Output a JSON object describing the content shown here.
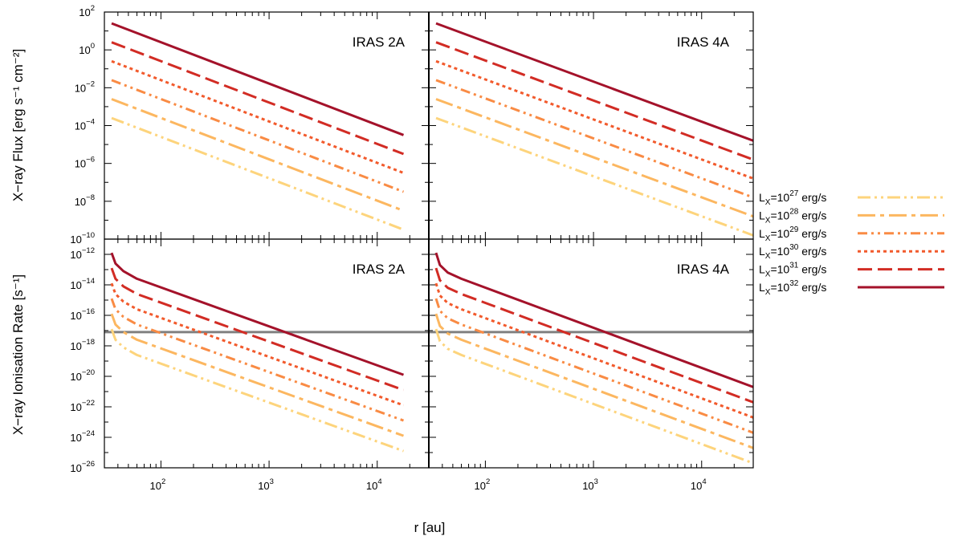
{
  "colors": {
    "lx27": "#fdd47c",
    "lx28": "#fcb760",
    "lx29": "#f98b44",
    "lx30": "#f25a2c",
    "lx31": "#d22c24",
    "lx32": "#a4122a",
    "threshold": "#808080"
  },
  "chart_data": [
    {
      "type": "line",
      "panel": "top-left",
      "title": "IRAS 2A",
      "ylabel": "X−ray Flux [erg s⁻¹ cm⁻²]",
      "xlabel": "r [au]",
      "xscale": "log",
      "yscale": "log",
      "xlim": [
        30,
        30000
      ],
      "ylim_exponents": [
        -10,
        2
      ],
      "yticks": [
        "10^2",
        "10^0",
        "10^-2",
        "10^-4",
        "10^-6",
        "10^-8",
        "10^-10"
      ],
      "series": [
        {
          "name": "LX=10^27 erg/s",
          "color_key": "lx27",
          "x": [
            35,
            17500
          ],
          "y_exp": [
            -3.6,
            -9.5
          ]
        },
        {
          "name": "LX=10^28 erg/s",
          "color_key": "lx28",
          "x": [
            35,
            17500
          ],
          "y_exp": [
            -2.6,
            -8.5
          ]
        },
        {
          "name": "LX=10^29 erg/s",
          "color_key": "lx29",
          "x": [
            35,
            17500
          ],
          "y_exp": [
            -1.6,
            -7.5
          ]
        },
        {
          "name": "LX=10^30 erg/s",
          "color_key": "lx30",
          "x": [
            35,
            17500
          ],
          "y_exp": [
            -0.6,
            -6.5
          ]
        },
        {
          "name": "LX=10^31 erg/s",
          "color_key": "lx31",
          "x": [
            35,
            17500
          ],
          "y_exp": [
            0.4,
            -5.5
          ]
        },
        {
          "name": "LX=10^32 erg/s",
          "color_key": "lx32",
          "x": [
            35,
            17500
          ],
          "y_exp": [
            1.4,
            -4.5
          ]
        }
      ]
    },
    {
      "type": "line",
      "panel": "top-right",
      "title": "IRAS 4A",
      "xscale": "log",
      "yscale": "log",
      "xlim": [
        30,
        30000
      ],
      "ylim_exponents": [
        -10,
        2
      ],
      "series": [
        {
          "name": "LX=10^27 erg/s",
          "color_key": "lx27",
          "x": [
            35,
            30000
          ],
          "y_exp": [
            -3.6,
            -9.8
          ]
        },
        {
          "name": "LX=10^28 erg/s",
          "color_key": "lx28",
          "x": [
            35,
            30000
          ],
          "y_exp": [
            -2.6,
            -8.8
          ]
        },
        {
          "name": "LX=10^29 erg/s",
          "color_key": "lx29",
          "x": [
            35,
            30000
          ],
          "y_exp": [
            -1.6,
            -7.8
          ]
        },
        {
          "name": "LX=10^30 erg/s",
          "color_key": "lx30",
          "x": [
            35,
            30000
          ],
          "y_exp": [
            -0.6,
            -6.8
          ]
        },
        {
          "name": "LX=10^31 erg/s",
          "color_key": "lx31",
          "x": [
            35,
            30000
          ],
          "y_exp": [
            0.4,
            -5.8
          ]
        },
        {
          "name": "LX=10^32 erg/s",
          "color_key": "lx32",
          "x": [
            35,
            30000
          ],
          "y_exp": [
            1.4,
            -4.8
          ]
        }
      ]
    },
    {
      "type": "line",
      "panel": "bottom-left",
      "title": "IRAS 2A",
      "ylabel": "X−ray Ionisation Rate [s⁻¹]",
      "xscale": "log",
      "yscale": "log",
      "xlim": [
        30,
        30000
      ],
      "ylim_exponents": [
        -26,
        -11
      ],
      "xticks": [
        "10^2",
        "10^3",
        "10^4"
      ],
      "yticks": [
        "10^-10",
        "10^-12",
        "10^-14",
        "10^-16",
        "10^-18",
        "10^-20",
        "10^-22",
        "10^-24",
        "10^-26"
      ],
      "threshold_y_exp": -17.1,
      "series": [
        {
          "name": "LX=10^27 erg/s",
          "color_key": "lx27",
          "x": [
            35,
            38,
            45,
            60,
            17500
          ],
          "y_exp": [
            -16.9,
            -17.6,
            -18.1,
            -18.6,
            -24.9
          ]
        },
        {
          "name": "LX=10^28 erg/s",
          "color_key": "lx28",
          "x": [
            35,
            38,
            45,
            60,
            17500
          ],
          "y_exp": [
            -15.9,
            -16.6,
            -17.1,
            -17.6,
            -23.9
          ]
        },
        {
          "name": "LX=10^29 erg/s",
          "color_key": "lx29",
          "x": [
            35,
            38,
            45,
            60,
            17500
          ],
          "y_exp": [
            -14.9,
            -15.6,
            -16.1,
            -16.6,
            -22.9
          ]
        },
        {
          "name": "LX=10^30 erg/s",
          "color_key": "lx30",
          "x": [
            35,
            38,
            45,
            60,
            17500
          ],
          "y_exp": [
            -13.9,
            -14.6,
            -15.1,
            -15.6,
            -21.9
          ]
        },
        {
          "name": "LX=10^31 erg/s",
          "color_key": "lx31",
          "x": [
            35,
            38,
            45,
            60,
            17500
          ],
          "y_exp": [
            -12.9,
            -13.6,
            -14.1,
            -14.6,
            -20.9
          ]
        },
        {
          "name": "LX=10^32 erg/s",
          "color_key": "lx32",
          "x": [
            35,
            38,
            45,
            60,
            17500
          ],
          "y_exp": [
            -11.9,
            -12.6,
            -13.1,
            -13.6,
            -19.9
          ]
        }
      ]
    },
    {
      "type": "line",
      "panel": "bottom-right",
      "title": "IRAS 4A",
      "xscale": "log",
      "yscale": "log",
      "xlim": [
        30,
        30000
      ],
      "ylim_exponents": [
        -26,
        -11
      ],
      "xticks": [
        "10^2",
        "10^3",
        "10^4"
      ],
      "threshold_y_exp": -17.1,
      "series": [
        {
          "name": "LX=10^27 erg/s",
          "color_key": "lx27",
          "x": [
            35,
            38,
            45,
            60,
            30000
          ],
          "y_exp": [
            -16.9,
            -17.7,
            -18.2,
            -18.6,
            -25.7
          ]
        },
        {
          "name": "LX=10^28 erg/s",
          "color_key": "lx28",
          "x": [
            35,
            38,
            45,
            60,
            30000
          ],
          "y_exp": [
            -15.9,
            -16.7,
            -17.2,
            -17.6,
            -24.7
          ]
        },
        {
          "name": "LX=10^29 erg/s",
          "color_key": "lx29",
          "x": [
            35,
            38,
            45,
            60,
            30000
          ],
          "y_exp": [
            -14.9,
            -15.7,
            -16.2,
            -16.6,
            -23.7
          ]
        },
        {
          "name": "LX=10^30 erg/s",
          "color_key": "lx30",
          "x": [
            35,
            38,
            45,
            60,
            30000
          ],
          "y_exp": [
            -13.9,
            -14.7,
            -15.2,
            -15.6,
            -22.7
          ]
        },
        {
          "name": "LX=10^31 erg/s",
          "color_key": "lx31",
          "x": [
            35,
            38,
            45,
            60,
            30000
          ],
          "y_exp": [
            -12.9,
            -13.7,
            -14.2,
            -14.6,
            -21.7
          ]
        },
        {
          "name": "LX=10^32 erg/s",
          "color_key": "lx32",
          "x": [
            35,
            38,
            45,
            60,
            30000
          ],
          "y_exp": [
            -11.9,
            -12.7,
            -13.2,
            -13.6,
            -20.7
          ]
        }
      ]
    }
  ],
  "legend": {
    "placement": "right",
    "items": [
      {
        "base": "L",
        "sub": "X",
        "eq": "=10",
        "exp": "27",
        "unit": " erg/s",
        "color_key": "lx27",
        "style": "dash-dot-dot"
      },
      {
        "base": "L",
        "sub": "X",
        "eq": "=10",
        "exp": "28",
        "unit": " erg/s",
        "color_key": "lx28",
        "style": "long-dash-dot"
      },
      {
        "base": "L",
        "sub": "X",
        "eq": "=10",
        "exp": "29",
        "unit": " erg/s",
        "color_key": "lx29",
        "style": "dash-dot-dot"
      },
      {
        "base": "L",
        "sub": "X",
        "eq": "=10",
        "exp": "30",
        "unit": " erg/s",
        "color_key": "lx30",
        "style": "dotted"
      },
      {
        "base": "L",
        "sub": "X",
        "eq": "=10",
        "exp": "31",
        "unit": " erg/s",
        "color_key": "lx31",
        "style": "dashed"
      },
      {
        "base": "L",
        "sub": "X",
        "eq": "=10",
        "exp": "32",
        "unit": " erg/s",
        "color_key": "lx32",
        "style": "solid"
      }
    ]
  },
  "labels": {
    "top_ylabel": "X−ray Flux [erg s⁻¹ cm⁻²]",
    "bottom_ylabel": "X−ray Ionisation Rate [s⁻¹]",
    "xlabel": "r [au]",
    "panel_tl": "IRAS 2A",
    "panel_tr": "IRAS 4A",
    "panel_bl": "IRAS 2A",
    "panel_br": "IRAS 4A"
  }
}
